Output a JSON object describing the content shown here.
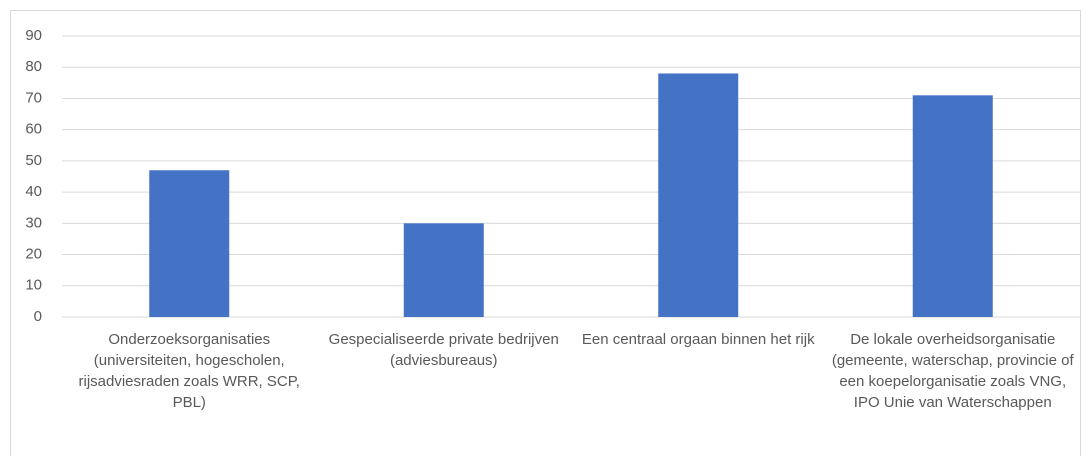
{
  "chart_data": {
    "type": "bar",
    "categories": [
      "Onderzoeksorganisaties (universiteiten, hogescholen, rijsadviesraden zoals WRR, SCP, PBL)",
      "Gespecialiseerde private bedrijven (adviesbureaus)",
      "Een centraal orgaan binnen het rijk",
      "De lokale overheidsorganisatie (gemeente, waterschap, provincie of een koepelorganisatie zoals VNG, IPO Unie van Waterschappen"
    ],
    "values": [
      47,
      30,
      78,
      71
    ],
    "color": "#4472c4",
    "ylim": [
      0,
      90
    ],
    "yticks": [
      0,
      10,
      20,
      30,
      40,
      50,
      60,
      70,
      80,
      90
    ],
    "grid": true
  }
}
